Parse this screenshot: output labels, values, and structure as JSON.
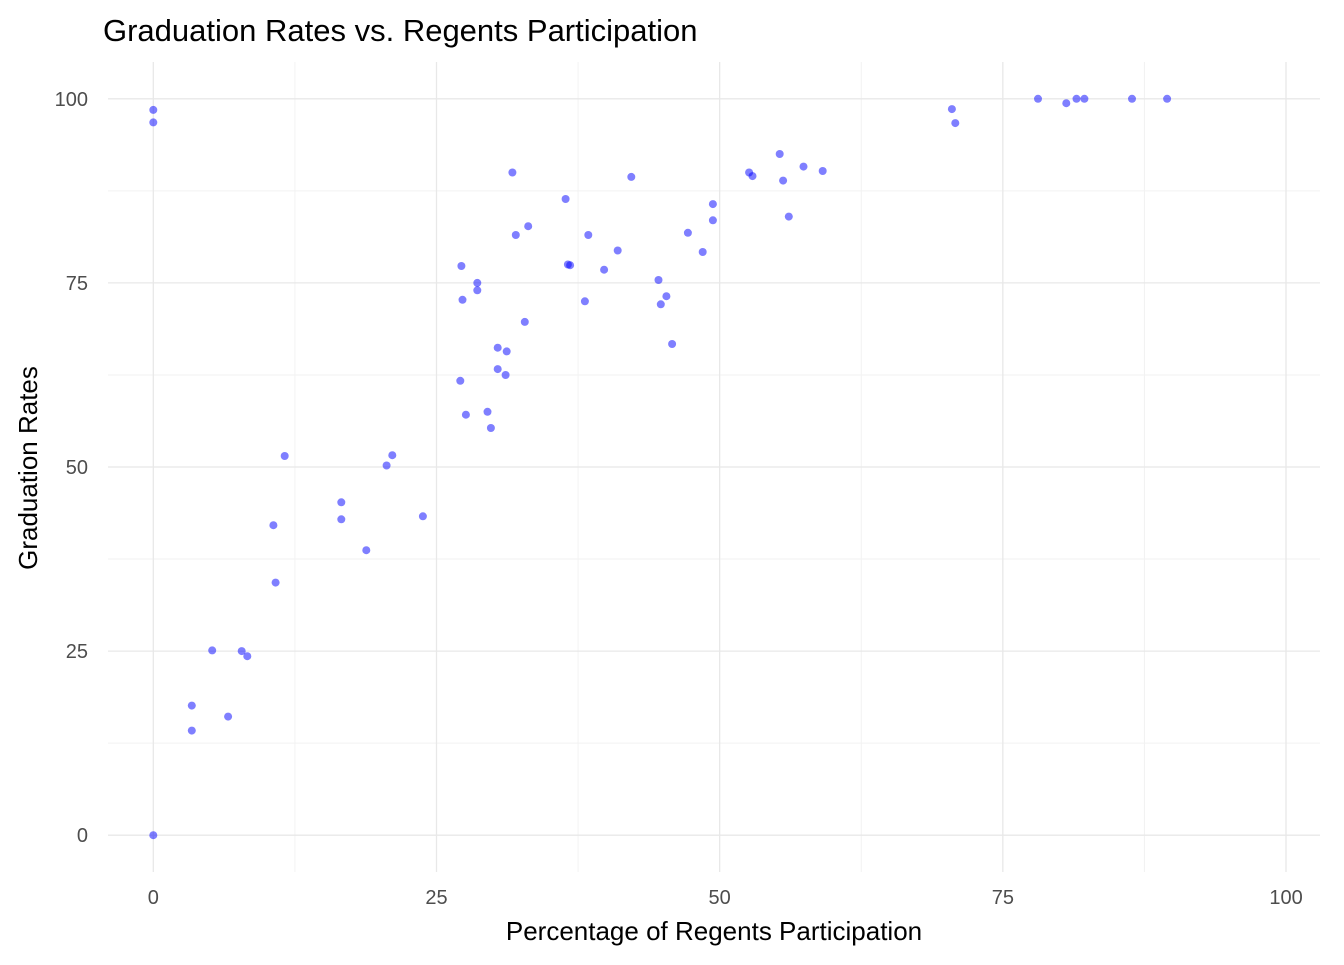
{
  "chart_data": {
    "type": "scatter",
    "title": "Graduation Rates vs. Regents Participation",
    "xlabel": "Percentage of Regents Participation",
    "ylabel": "Graduation Rates",
    "xlim": [
      -4,
      103
    ],
    "ylim": [
      -5,
      105
    ],
    "x_ticks": [
      0,
      25,
      50,
      75,
      100
    ],
    "y_ticks": [
      0,
      25,
      50,
      75,
      100
    ],
    "grid": true,
    "legend": "none",
    "point_color": "#0000ff",
    "point_opacity": 0.5,
    "series": [
      {
        "points": [
          [
            0,
            98.5
          ],
          [
            0,
            96.8
          ],
          [
            0,
            0
          ],
          [
            11.6,
            51.5
          ],
          [
            5.2,
            25.1
          ],
          [
            10.6,
            42.1
          ],
          [
            10.8,
            34.3
          ],
          [
            3.4,
            17.6
          ],
          [
            3.4,
            14.2
          ],
          [
            7.8,
            25.0
          ],
          [
            8.3,
            24.3
          ],
          [
            6.6,
            16.1
          ],
          [
            20.6,
            50.2
          ],
          [
            21.1,
            51.6
          ],
          [
            16.6,
            45.2
          ],
          [
            16.6,
            42.9
          ],
          [
            18.8,
            38.7
          ],
          [
            23.8,
            43.3
          ],
          [
            27.1,
            61.7
          ],
          [
            27.2,
            77.3
          ],
          [
            27.3,
            72.7
          ],
          [
            28.6,
            75.0
          ],
          [
            28.6,
            74.0
          ],
          [
            27.6,
            57.1
          ],
          [
            29.5,
            57.5
          ],
          [
            29.8,
            55.3
          ],
          [
            30.4,
            66.2
          ],
          [
            30.4,
            63.3
          ],
          [
            31.1,
            62.5
          ],
          [
            31.2,
            65.7
          ],
          [
            31.7,
            90.0
          ],
          [
            32.0,
            81.5
          ],
          [
            33.1,
            82.7
          ],
          [
            32.8,
            69.7
          ],
          [
            36.4,
            86.4
          ],
          [
            36.6,
            77.5
          ],
          [
            36.8,
            77.4
          ],
          [
            38.1,
            72.5
          ],
          [
            38.4,
            81.5
          ],
          [
            41.0,
            79.4
          ],
          [
            42.2,
            89.4
          ],
          [
            39.8,
            76.8
          ],
          [
            44.6,
            75.4
          ],
          [
            45.3,
            73.2
          ],
          [
            44.8,
            72.1
          ],
          [
            45.8,
            66.7
          ],
          [
            47.2,
            81.8
          ],
          [
            48.5,
            79.2
          ],
          [
            49.4,
            85.7
          ],
          [
            49.4,
            83.5
          ],
          [
            52.6,
            90.0
          ],
          [
            52.9,
            89.5
          ],
          [
            55.3,
            92.5
          ],
          [
            55.6,
            88.9
          ],
          [
            56.1,
            84.0
          ],
          [
            57.4,
            90.8
          ],
          [
            59.1,
            90.2
          ],
          [
            70.5,
            98.6
          ],
          [
            70.8,
            96.7
          ],
          [
            78.1,
            100
          ],
          [
            81.5,
            100
          ],
          [
            80.6,
            99.4
          ],
          [
            82.2,
            100
          ],
          [
            86.4,
            100
          ],
          [
            89.5,
            100
          ]
        ]
      }
    ]
  }
}
